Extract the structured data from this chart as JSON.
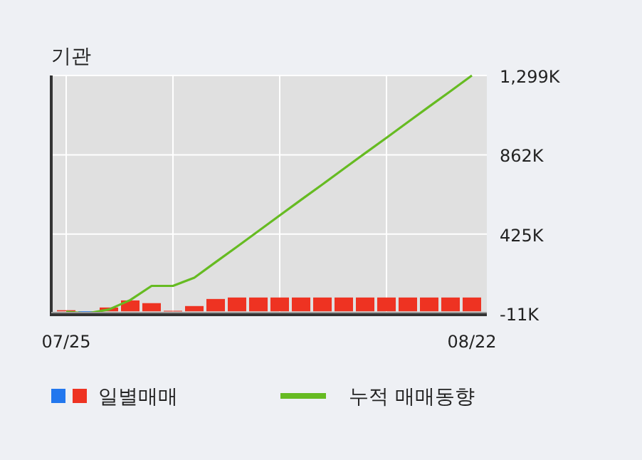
{
  "chart_data": {
    "type": "bar",
    "title": "기관",
    "categories": [
      "07/25",
      null,
      null,
      null,
      null,
      null,
      null,
      null,
      null,
      null,
      null,
      null,
      null,
      null,
      null,
      null,
      null,
      null,
      null,
      "08/22"
    ],
    "series": [
      {
        "name": "일별매매",
        "colors": [
          "#ee3322",
          "#2277ee",
          "#ee3322",
          "#ee3322",
          "#ee3322",
          "#ee3322",
          "#ee3322",
          "#ee3322",
          "#ee3322",
          "#ee3322",
          "#ee3322",
          "#ee3322",
          "#ee3322",
          "#ee3322",
          "#ee3322",
          "#ee3322",
          "#ee3322",
          "#ee3322",
          "#ee3322",
          "#ee3322"
        ],
        "values": [
          6,
          -2,
          21,
          60,
          45,
          3,
          29,
          68,
          76,
          76,
          76,
          76,
          76,
          76,
          76,
          76,
          76,
          76,
          76,
          76
        ]
      },
      {
        "name": "누적 매매동향",
        "type": "line",
        "color": "#66bb22",
        "values": [
          -3,
          -11,
          10,
          62,
          140,
          140,
          185,
          271,
          356,
          442,
          528,
          614,
          699,
          785,
          871,
          956,
          1042,
          1128,
          1213,
          1299
        ]
      }
    ],
    "ylim": [
      -11,
      1299
    ],
    "yticks": [
      {
        "value": -11,
        "label": "-11K"
      },
      {
        "value": 425,
        "label": "425K"
      },
      {
        "value": 862,
        "label": "862K"
      },
      {
        "value": 1299,
        "label": "1,299K"
      }
    ],
    "grid": true,
    "legend": "bottom"
  }
}
